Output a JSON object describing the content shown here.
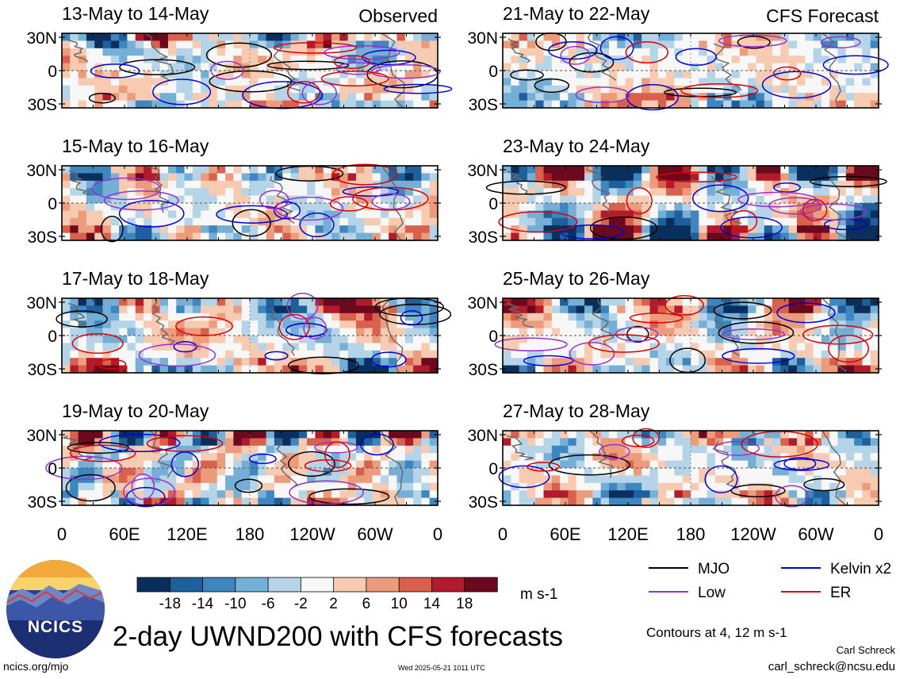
{
  "chart_data": {
    "type": "heatmap",
    "title": "2-day UWND200 with CFS forecasts",
    "variable": "200-hPa zonal wind (UWND200)",
    "units": "m s-1",
    "colorbar": {
      "ticks": [
        -18,
        -14,
        -10,
        -6,
        -2,
        2,
        6,
        10,
        14,
        18
      ],
      "colors": [
        "#0b2f5c",
        "#1f5f9c",
        "#3e86c0",
        "#76afd6",
        "#b5d4e8",
        "#f7f7f7",
        "#f7cbb2",
        "#ec9c7c",
        "#d8604d",
        "#b01c2c",
        "#6b0a1f"
      ]
    },
    "x_axis": {
      "ticks": [
        "0",
        "60E",
        "120E",
        "180",
        "120W",
        "60W",
        "0"
      ]
    },
    "y_axis": {
      "ticks": [
        "30N",
        "0",
        "30S"
      ]
    },
    "panels": [
      {
        "label": "13-May to 14-May",
        "tag": "Observed",
        "column": "observed",
        "seed": 11
      },
      {
        "label": "15-May to 16-May",
        "tag": "",
        "column": "observed",
        "seed": 23
      },
      {
        "label": "17-May to 18-May",
        "tag": "",
        "column": "observed",
        "seed": 37
      },
      {
        "label": "19-May to 20-May",
        "tag": "",
        "column": "observed",
        "seed": 41
      },
      {
        "label": "21-May to 22-May",
        "tag": "CFS Forecast",
        "column": "forecast",
        "seed": 53
      },
      {
        "label": "23-May to 24-May",
        "tag": "",
        "column": "forecast",
        "seed": 67
      },
      {
        "label": "25-May to 26-May",
        "tag": "",
        "column": "forecast",
        "seed": 71
      },
      {
        "label": "27-May to 28-May",
        "tag": "",
        "column": "forecast",
        "seed": 89
      }
    ],
    "contour_series": [
      {
        "name": "MJO",
        "color": "#000000"
      },
      {
        "name": "Kelvin x2",
        "color": "#0000dd"
      },
      {
        "name": "Low",
        "color": "#9932cc"
      },
      {
        "name": "ER",
        "color": "#dd0000"
      }
    ],
    "contour_levels_note": "Contours at 4, 12 m s-1"
  },
  "footer": {
    "logo_text": "NCICS",
    "site": "ncics.org/mjo",
    "timestamp": "Wed 2025-05-21 1011 UTC",
    "author": "Carl Schreck",
    "email": "carl_schreck@ncsu.edu"
  }
}
